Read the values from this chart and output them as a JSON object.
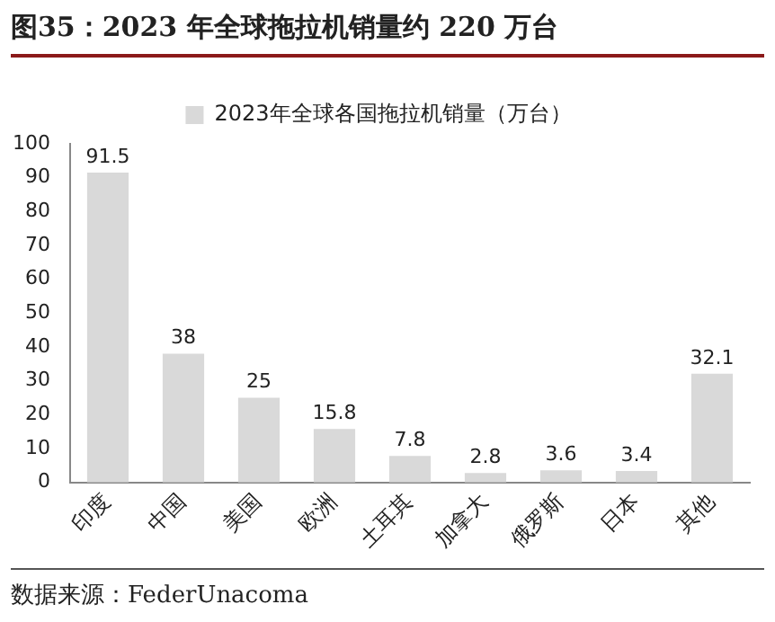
{
  "chart_data": {
    "type": "bar",
    "title": "图35：2023 年全球拖拉机销量约 220 万台",
    "categories": [
      "印度",
      "中国",
      "美国",
      "欧洲",
      "土耳其",
      "加拿大",
      "俄罗斯",
      "日本",
      "其他"
    ],
    "series": [
      {
        "name": "2023年全球各国拖拉机销量（万台）",
        "color": "#d9d9d9",
        "values": [
          91.5,
          38,
          25,
          15.8,
          7.8,
          2.8,
          3.6,
          3.4,
          32.1
        ]
      }
    ],
    "ylim": [
      0,
      100
    ],
    "yticks": [
      0,
      10,
      20,
      30,
      40,
      50,
      60,
      70,
      80,
      90,
      100
    ],
    "grid": false,
    "legend": "top",
    "data_labels": true,
    "annotations": [
      "数据来源：FederUnacoma"
    ]
  }
}
